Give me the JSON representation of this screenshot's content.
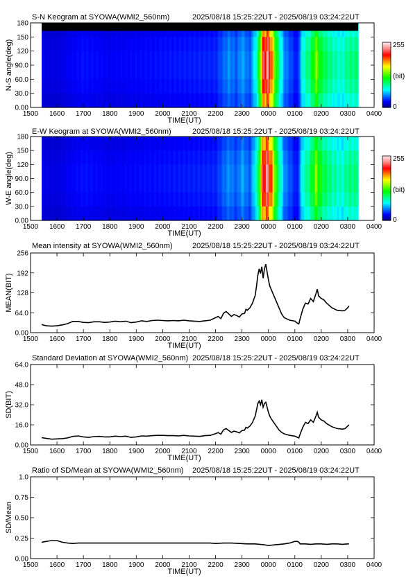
{
  "header_time_range": "2025/08/18 15:25:22UT  - 2025/08/19 03:24:22UT",
  "time_axis": {
    "label": "TIME(UT)",
    "tick_labels": [
      "1500",
      "1600",
      "1700",
      "1800",
      "1900",
      "2000",
      "2100",
      "2200",
      "2300",
      "0000",
      "0100",
      "0200",
      "0300",
      "0400"
    ],
    "data_start": "1525",
    "data_end": "0324"
  },
  "colorbar": {
    "max_label": "255",
    "mid_label": "(bit)",
    "min_label": "0",
    "colors": [
      "#000080",
      "#0000ff",
      "#0080ff",
      "#00ffff",
      "#00ff80",
      "#00ff00",
      "#80ff00",
      "#ffff00",
      "#ff8000",
      "#ff0000",
      "#ff8080",
      "#ffe0e0"
    ]
  },
  "chart_data": [
    {
      "type": "heatmap",
      "title": "S-N Keogram at SYOWA(WMI2_560nm)",
      "xlabel": "TIME(UT)",
      "ylabel": "N-S angle(deg)",
      "ytick_labels": [
        "0.00",
        "30.0",
        "60.0",
        "90.0",
        "120",
        "150",
        "180"
      ],
      "ylim": [
        0,
        180
      ],
      "masked_top_band": [
        163,
        180
      ],
      "intensity_profile": [
        {
          "t": 0.0,
          "v": 20
        },
        {
          "t": 1.0,
          "v": 18
        },
        {
          "t": 2.0,
          "v": 26
        },
        {
          "t": 3.0,
          "v": 22
        },
        {
          "t": 4.0,
          "v": 24
        },
        {
          "t": 5.0,
          "v": 26
        },
        {
          "t": 6.0,
          "v": 28
        },
        {
          "t": 7.0,
          "v": 30
        },
        {
          "t": 7.5,
          "v": 50
        },
        {
          "t": 7.8,
          "v": 40
        },
        {
          "t": 8.0,
          "v": 55
        },
        {
          "t": 8.3,
          "v": 40
        },
        {
          "t": 8.6,
          "v": 90
        },
        {
          "t": 8.8,
          "v": 220
        },
        {
          "t": 8.95,
          "v": 235
        },
        {
          "t": 9.1,
          "v": 200
        },
        {
          "t": 9.3,
          "v": 120
        },
        {
          "t": 9.6,
          "v": 50
        },
        {
          "t": 10.0,
          "v": 30
        },
        {
          "t": 10.1,
          "v": 25
        },
        {
          "t": 10.3,
          "v": 80
        },
        {
          "t": 10.6,
          "v": 100
        },
        {
          "t": 10.8,
          "v": 140
        },
        {
          "t": 11.0,
          "v": 110
        },
        {
          "t": 11.4,
          "v": 90
        },
        {
          "t": 11.8,
          "v": 80
        },
        {
          "t": 12.0,
          "v": 95
        }
      ]
    },
    {
      "type": "heatmap",
      "title": "E-W Keogram at SYOWA(WMI2_560nm)",
      "xlabel": "TIME(UT)",
      "ylabel": "W-E angle(deg)",
      "ytick_labels": [
        "0.00",
        "30.0",
        "60.0",
        "90.0",
        "120",
        "150",
        "180"
      ],
      "ylim": [
        0,
        180
      ],
      "intensity_profile": [
        {
          "t": 0.0,
          "v": 20
        },
        {
          "t": 1.0,
          "v": 18
        },
        {
          "t": 2.0,
          "v": 26
        },
        {
          "t": 3.0,
          "v": 22
        },
        {
          "t": 4.0,
          "v": 24
        },
        {
          "t": 5.0,
          "v": 26
        },
        {
          "t": 6.0,
          "v": 28
        },
        {
          "t": 7.0,
          "v": 30
        },
        {
          "t": 7.5,
          "v": 50
        },
        {
          "t": 7.8,
          "v": 40
        },
        {
          "t": 8.0,
          "v": 55
        },
        {
          "t": 8.3,
          "v": 40
        },
        {
          "t": 8.6,
          "v": 90
        },
        {
          "t": 8.8,
          "v": 220
        },
        {
          "t": 8.95,
          "v": 235
        },
        {
          "t": 9.1,
          "v": 200
        },
        {
          "t": 9.3,
          "v": 120
        },
        {
          "t": 9.6,
          "v": 50
        },
        {
          "t": 10.0,
          "v": 30
        },
        {
          "t": 10.1,
          "v": 25
        },
        {
          "t": 10.3,
          "v": 80
        },
        {
          "t": 10.6,
          "v": 100
        },
        {
          "t": 10.8,
          "v": 140
        },
        {
          "t": 11.0,
          "v": 110
        },
        {
          "t": 11.4,
          "v": 90
        },
        {
          "t": 11.8,
          "v": 80
        },
        {
          "t": 12.0,
          "v": 95
        }
      ]
    },
    {
      "type": "line",
      "title": "Mean intensity at SYOWA(WMI2_560nm)",
      "xlabel": "TIME(UT)",
      "ylabel": "MEAN(BIT)",
      "ytick_labels": [
        "0.00",
        "64.0",
        "128",
        "192",
        "256"
      ],
      "ylim": [
        0,
        256
      ],
      "points": [
        [
          0.42,
          26
        ],
        [
          0.6,
          22
        ],
        [
          0.8,
          21
        ],
        [
          1.0,
          22
        ],
        [
          1.2,
          25
        ],
        [
          1.4,
          29
        ],
        [
          1.6,
          36
        ],
        [
          1.8,
          36
        ],
        [
          2.0,
          33
        ],
        [
          2.2,
          32
        ],
        [
          2.4,
          35
        ],
        [
          2.6,
          35
        ],
        [
          2.8,
          33
        ],
        [
          3.0,
          34
        ],
        [
          3.2,
          37
        ],
        [
          3.4,
          35
        ],
        [
          3.6,
          37
        ],
        [
          3.8,
          32
        ],
        [
          4.0,
          34
        ],
        [
          4.2,
          38
        ],
        [
          4.4,
          36
        ],
        [
          4.6,
          39
        ],
        [
          4.8,
          40
        ],
        [
          5.0,
          39
        ],
        [
          5.2,
          38
        ],
        [
          5.4,
          39
        ],
        [
          5.6,
          38
        ],
        [
          5.8,
          40
        ],
        [
          6.0,
          38
        ],
        [
          6.2,
          37
        ],
        [
          6.4,
          36
        ],
        [
          6.6,
          38
        ],
        [
          6.8,
          40
        ],
        [
          7.0,
          48
        ],
        [
          7.1,
          52
        ],
        [
          7.2,
          45
        ],
        [
          7.3,
          62
        ],
        [
          7.4,
          68
        ],
        [
          7.5,
          60
        ],
        [
          7.6,
          52
        ],
        [
          7.7,
          58
        ],
        [
          7.8,
          55
        ],
        [
          7.9,
          50
        ],
        [
          8.0,
          60
        ],
        [
          8.1,
          62
        ],
        [
          8.15,
          75
        ],
        [
          8.2,
          72
        ],
        [
          8.3,
          80
        ],
        [
          8.4,
          95
        ],
        [
          8.5,
          120
        ],
        [
          8.55,
          150
        ],
        [
          8.6,
          185
        ],
        [
          8.65,
          205
        ],
        [
          8.7,
          190
        ],
        [
          8.75,
          212
        ],
        [
          8.8,
          175
        ],
        [
          8.85,
          205
        ],
        [
          8.9,
          220
        ],
        [
          8.95,
          195
        ],
        [
          9.0,
          170
        ],
        [
          9.05,
          150
        ],
        [
          9.1,
          140
        ],
        [
          9.2,
          120
        ],
        [
          9.3,
          100
        ],
        [
          9.4,
          80
        ],
        [
          9.5,
          60
        ],
        [
          9.6,
          48
        ],
        [
          9.7,
          44
        ],
        [
          9.8,
          40
        ],
        [
          10.0,
          37
        ],
        [
          10.1,
          30
        ],
        [
          10.15,
          28
        ],
        [
          10.2,
          45
        ],
        [
          10.3,
          75
        ],
        [
          10.4,
          95
        ],
        [
          10.5,
          92
        ],
        [
          10.6,
          110
        ],
        [
          10.7,
          100
        ],
        [
          10.8,
          125
        ],
        [
          10.85,
          140
        ],
        [
          10.9,
          118
        ],
        [
          11.0,
          110
        ],
        [
          11.1,
          105
        ],
        [
          11.2,
          95
        ],
        [
          11.4,
          80
        ],
        [
          11.6,
          72
        ],
        [
          11.8,
          70
        ],
        [
          11.9,
          72
        ],
        [
          12.0,
          80
        ],
        [
          12.05,
          86
        ]
      ]
    },
    {
      "type": "line",
      "title": "Standard Deviation at SYOWA(WMI2_560nm)",
      "xlabel": "TIME(UT)",
      "ylabel": "SD(BIT)",
      "ytick_labels": [
        "0.00",
        "16.0",
        "32.0",
        "48.0",
        "64.0"
      ],
      "ylim": [
        0,
        64
      ],
      "points": [
        [
          0.42,
          5.8
        ],
        [
          0.6,
          5.2
        ],
        [
          0.8,
          4.6
        ],
        [
          1.0,
          4.8
        ],
        [
          1.2,
          5.0
        ],
        [
          1.4,
          5.6
        ],
        [
          1.6,
          6.8
        ],
        [
          1.8,
          7.2
        ],
        [
          2.0,
          6.4
        ],
        [
          2.2,
          6.0
        ],
        [
          2.4,
          6.6
        ],
        [
          2.6,
          6.8
        ],
        [
          2.8,
          6.4
        ],
        [
          3.0,
          6.4
        ],
        [
          3.2,
          7.0
        ],
        [
          3.4,
          6.6
        ],
        [
          3.6,
          7.0
        ],
        [
          3.8,
          6.0
        ],
        [
          4.0,
          6.4
        ],
        [
          4.2,
          7.2
        ],
        [
          4.4,
          7.0
        ],
        [
          4.6,
          7.4
        ],
        [
          4.8,
          7.6
        ],
        [
          5.0,
          7.6
        ],
        [
          5.2,
          7.4
        ],
        [
          5.4,
          7.4
        ],
        [
          5.6,
          7.2
        ],
        [
          5.8,
          7.6
        ],
        [
          6.0,
          7.2
        ],
        [
          6.2,
          7.0
        ],
        [
          6.4,
          6.8
        ],
        [
          6.6,
          7.4
        ],
        [
          6.8,
          7.6
        ],
        [
          7.0,
          9.0
        ],
        [
          7.1,
          9.8
        ],
        [
          7.2,
          8.6
        ],
        [
          7.3,
          12.0
        ],
        [
          7.4,
          13.0
        ],
        [
          7.5,
          11.4
        ],
        [
          7.6,
          10.0
        ],
        [
          7.7,
          11.0
        ],
        [
          7.8,
          10.4
        ],
        [
          7.9,
          9.6
        ],
        [
          8.0,
          11.4
        ],
        [
          8.1,
          11.8
        ],
        [
          8.15,
          14.0
        ],
        [
          8.2,
          13.4
        ],
        [
          8.3,
          15.0
        ],
        [
          8.4,
          18.0
        ],
        [
          8.5,
          23.0
        ],
        [
          8.55,
          28.0
        ],
        [
          8.6,
          33.0
        ],
        [
          8.65,
          35.0
        ],
        [
          8.7,
          32.0
        ],
        [
          8.75,
          36.0
        ],
        [
          8.8,
          30.0
        ],
        [
          8.85,
          33.0
        ],
        [
          8.9,
          34.0
        ],
        [
          8.95,
          30.0
        ],
        [
          9.0,
          26.0
        ],
        [
          9.05,
          23.0
        ],
        [
          9.1,
          21.0
        ],
        [
          9.2,
          18.0
        ],
        [
          9.3,
          15.0
        ],
        [
          9.4,
          12.0
        ],
        [
          9.5,
          10.0
        ],
        [
          9.6,
          8.8
        ],
        [
          9.7,
          8.2
        ],
        [
          9.8,
          7.6
        ],
        [
          10.0,
          7.0
        ],
        [
          10.1,
          6.0
        ],
        [
          10.15,
          5.6
        ],
        [
          10.2,
          8.6
        ],
        [
          10.3,
          14.0
        ],
        [
          10.4,
          18.0
        ],
        [
          10.5,
          17.0
        ],
        [
          10.6,
          20.0
        ],
        [
          10.7,
          18.0
        ],
        [
          10.8,
          23.0
        ],
        [
          10.85,
          26.0
        ],
        [
          10.9,
          22.0
        ],
        [
          11.0,
          20.0
        ],
        [
          11.1,
          19.0
        ],
        [
          11.2,
          17.0
        ],
        [
          11.4,
          14.5
        ],
        [
          11.6,
          13.0
        ],
        [
          11.8,
          12.6
        ],
        [
          11.9,
          13.0
        ],
        [
          12.0,
          15.0
        ],
        [
          12.05,
          16.0
        ]
      ]
    },
    {
      "type": "line",
      "title": "Ratio of SD/Mean at SYOWA(WMI2_560nm)",
      "xlabel": "TIME(UT)",
      "ylabel": "SD/Mean",
      "ytick_labels": [
        "0.00",
        "0.25",
        "0.50",
        "0.75",
        "1.0"
      ],
      "ylim": [
        0,
        1.0
      ],
      "points": [
        [
          0.42,
          0.2
        ],
        [
          0.6,
          0.21
        ],
        [
          0.8,
          0.22
        ],
        [
          1.0,
          0.22
        ],
        [
          1.2,
          0.2
        ],
        [
          1.4,
          0.19
        ],
        [
          1.6,
          0.185
        ],
        [
          1.8,
          0.19
        ],
        [
          2.0,
          0.19
        ],
        [
          2.2,
          0.19
        ],
        [
          2.4,
          0.19
        ],
        [
          2.6,
          0.19
        ],
        [
          2.8,
          0.19
        ],
        [
          3.0,
          0.19
        ],
        [
          3.2,
          0.19
        ],
        [
          3.4,
          0.19
        ],
        [
          3.6,
          0.19
        ],
        [
          3.8,
          0.19
        ],
        [
          4.0,
          0.19
        ],
        [
          4.2,
          0.19
        ],
        [
          4.4,
          0.19
        ],
        [
          4.6,
          0.19
        ],
        [
          4.8,
          0.19
        ],
        [
          5.0,
          0.19
        ],
        [
          5.2,
          0.19
        ],
        [
          5.4,
          0.19
        ],
        [
          5.6,
          0.19
        ],
        [
          5.8,
          0.19
        ],
        [
          6.0,
          0.19
        ],
        [
          6.2,
          0.19
        ],
        [
          6.4,
          0.19
        ],
        [
          6.6,
          0.19
        ],
        [
          6.8,
          0.19
        ],
        [
          7.0,
          0.185
        ],
        [
          7.3,
          0.19
        ],
        [
          7.6,
          0.19
        ],
        [
          7.9,
          0.185
        ],
        [
          8.2,
          0.18
        ],
        [
          8.5,
          0.18
        ],
        [
          8.8,
          0.17
        ],
        [
          9.0,
          0.16
        ],
        [
          9.3,
          0.17
        ],
        [
          9.6,
          0.18
        ],
        [
          9.8,
          0.19
        ],
        [
          10.0,
          0.21
        ],
        [
          10.1,
          0.21
        ],
        [
          10.15,
          0.2
        ],
        [
          10.2,
          0.18
        ],
        [
          10.4,
          0.18
        ],
        [
          10.6,
          0.175
        ],
        [
          10.8,
          0.18
        ],
        [
          11.0,
          0.18
        ],
        [
          11.2,
          0.175
        ],
        [
          11.4,
          0.18
        ],
        [
          11.6,
          0.18
        ],
        [
          11.8,
          0.175
        ],
        [
          12.0,
          0.18
        ],
        [
          12.05,
          0.18
        ]
      ]
    }
  ]
}
